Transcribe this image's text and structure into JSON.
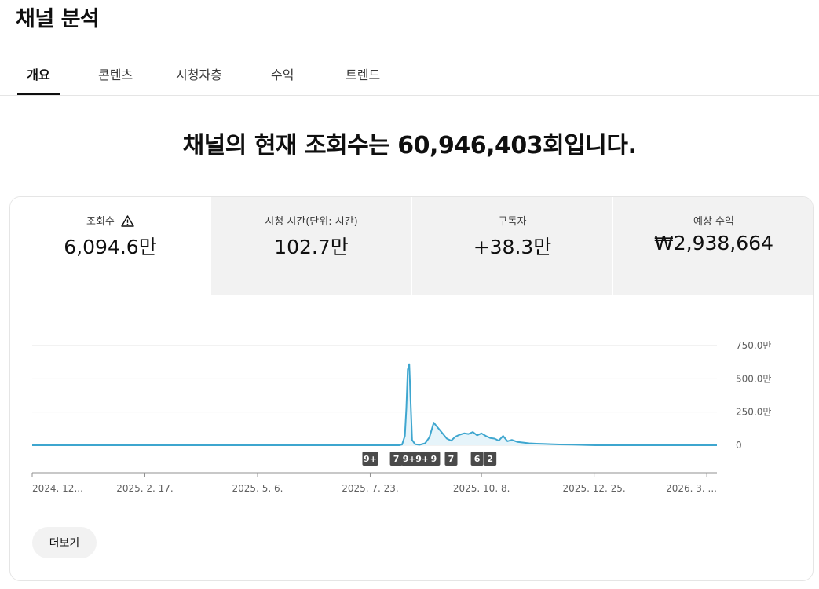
{
  "page": {
    "title": "채널 분석"
  },
  "tabs": [
    {
      "label": "개요",
      "active": true
    },
    {
      "label": "콘텐츠",
      "active": false
    },
    {
      "label": "시청자층",
      "active": false
    },
    {
      "label": "수익",
      "active": false
    },
    {
      "label": "트렌드",
      "active": false
    }
  ],
  "headline": "채널의 현재 조회수는 60,946,403회입니다.",
  "metrics": [
    {
      "label": "조회수",
      "value": "6,094.6만",
      "warning_icon": "warning-icon",
      "active": true
    },
    {
      "label": "시청 시간(단위: 시간)",
      "value": "102.7만",
      "active": false
    },
    {
      "label": "구독자",
      "value": "+38.3만",
      "active": false
    },
    {
      "label": "예상 수익",
      "value": "₩2,938,664",
      "active": false
    }
  ],
  "chart_data": {
    "type": "line",
    "y_ticks": [
      "750.0만",
      "500.0만",
      "250.0만",
      "0"
    ],
    "x_ticks": [
      "2024. 12...",
      "2025. 2. 17.",
      "2025. 5. 6.",
      "2025. 7. 23.",
      "2025. 10. 8.",
      "2025. 12. 25.",
      "2026. 3. ..."
    ],
    "ylim": [
      0,
      7500000
    ],
    "grid": true,
    "series": [
      {
        "color": "#3ea6cf",
        "fill": "#e6f4fa",
        "points": [
          [
            "2024-12-01",
            0
          ],
          [
            "2025-08-12",
            0
          ],
          [
            "2025-08-14",
            50000
          ],
          [
            "2025-08-16",
            700000
          ],
          [
            "2025-08-17",
            2800000
          ],
          [
            "2025-08-18",
            5700000
          ],
          [
            "2025-08-19",
            6100000
          ],
          [
            "2025-08-20",
            3200000
          ],
          [
            "2025-08-21",
            400000
          ],
          [
            "2025-08-23",
            80000
          ],
          [
            "2025-08-26",
            30000
          ],
          [
            "2025-08-30",
            150000
          ],
          [
            "2025-09-02",
            600000
          ],
          [
            "2025-09-05",
            1700000
          ],
          [
            "2025-09-08",
            1300000
          ],
          [
            "2025-09-11",
            900000
          ],
          [
            "2025-09-14",
            500000
          ],
          [
            "2025-09-17",
            350000
          ],
          [
            "2025-09-20",
            650000
          ],
          [
            "2025-09-23",
            800000
          ],
          [
            "2025-09-26",
            900000
          ],
          [
            "2025-09-29",
            850000
          ],
          [
            "2025-10-02",
            1000000
          ],
          [
            "2025-10-05",
            750000
          ],
          [
            "2025-10-08",
            900000
          ],
          [
            "2025-10-11",
            700000
          ],
          [
            "2025-10-14",
            550000
          ],
          [
            "2025-10-17",
            500000
          ],
          [
            "2025-10-20",
            350000
          ],
          [
            "2025-10-23",
            700000
          ],
          [
            "2025-10-26",
            300000
          ],
          [
            "2025-10-29",
            400000
          ],
          [
            "2025-11-02",
            250000
          ],
          [
            "2025-11-06",
            200000
          ],
          [
            "2025-11-10",
            150000
          ],
          [
            "2025-11-15",
            120000
          ],
          [
            "2025-11-20",
            100000
          ],
          [
            "2025-11-25",
            80000
          ],
          [
            "2025-12-01",
            60000
          ],
          [
            "2025-12-10",
            40000
          ],
          [
            "2025-12-20",
            15000
          ],
          [
            "2025-12-26",
            0
          ],
          [
            "2026-03-20",
            0
          ]
        ]
      }
    ],
    "markers": [
      {
        "date": "2025-07-23",
        "label": "9+"
      },
      {
        "date": "2025-08-10",
        "label": "7"
      },
      {
        "date": "2025-08-19",
        "label": "9+"
      },
      {
        "date": "2025-08-28",
        "label": "9+"
      },
      {
        "date": "2025-09-05",
        "label": "9"
      },
      {
        "date": "2025-09-17",
        "label": "7"
      },
      {
        "date": "2025-10-05",
        "label": "6"
      },
      {
        "date": "2025-10-14",
        "label": "2"
      }
    ]
  },
  "footer": {
    "more_label": "더보기"
  }
}
